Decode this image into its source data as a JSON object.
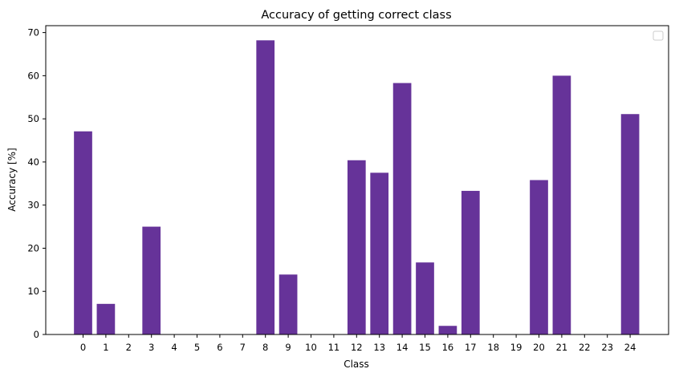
{
  "chart_data": {
    "type": "bar",
    "title": "Accuracy of getting correct class",
    "xlabel": "Class",
    "ylabel": "Accuracy [%]",
    "categories": [
      "0",
      "1",
      "2",
      "3",
      "4",
      "5",
      "6",
      "7",
      "8",
      "9",
      "10",
      "11",
      "12",
      "13",
      "14",
      "15",
      "16",
      "17",
      "18",
      "19",
      "20",
      "21",
      "22",
      "23",
      "24"
    ],
    "values": [
      47.1,
      7.1,
      0,
      25.0,
      0,
      0,
      0,
      0,
      68.2,
      13.9,
      0,
      0,
      40.4,
      37.5,
      58.3,
      16.7,
      2.0,
      33.3,
      0,
      0,
      35.8,
      60.0,
      0,
      0,
      51.1
    ],
    "yticks": [
      0,
      10,
      20,
      30,
      40,
      50,
      60,
      70
    ],
    "ylim": [
      0,
      71.6
    ],
    "bar_color": "#663399",
    "grid": false,
    "legend": {
      "placement": "top-right",
      "entries": []
    }
  }
}
